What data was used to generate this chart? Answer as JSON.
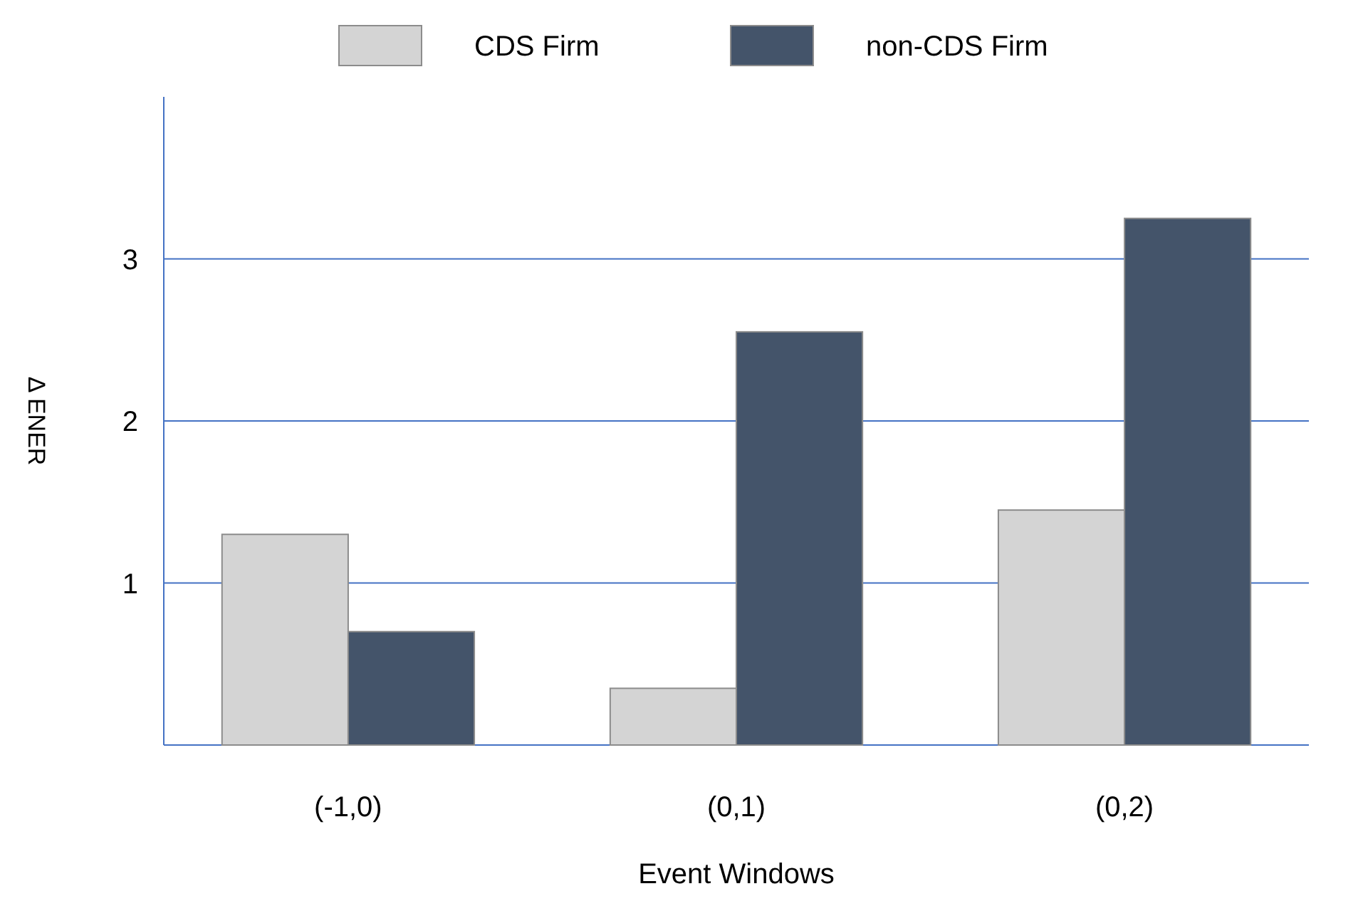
{
  "chart_data": {
    "type": "bar",
    "xlabel": "Event Windows",
    "ylabel": "Δ ENER",
    "categories": [
      "(-1,0)",
      "(0,1)",
      "(0,2)"
    ],
    "series": [
      {
        "name": "CDS Firm",
        "color": "#d4d4d4",
        "values": [
          1.3,
          0.35,
          1.45
        ]
      },
      {
        "name": "non-CDS Firm",
        "color": "#44546a",
        "values": [
          0.7,
          2.55,
          3.25
        ]
      }
    ],
    "ylim": [
      0,
      4
    ],
    "yticks": [
      1,
      2,
      3
    ],
    "grid": "y",
    "legend": "top"
  }
}
